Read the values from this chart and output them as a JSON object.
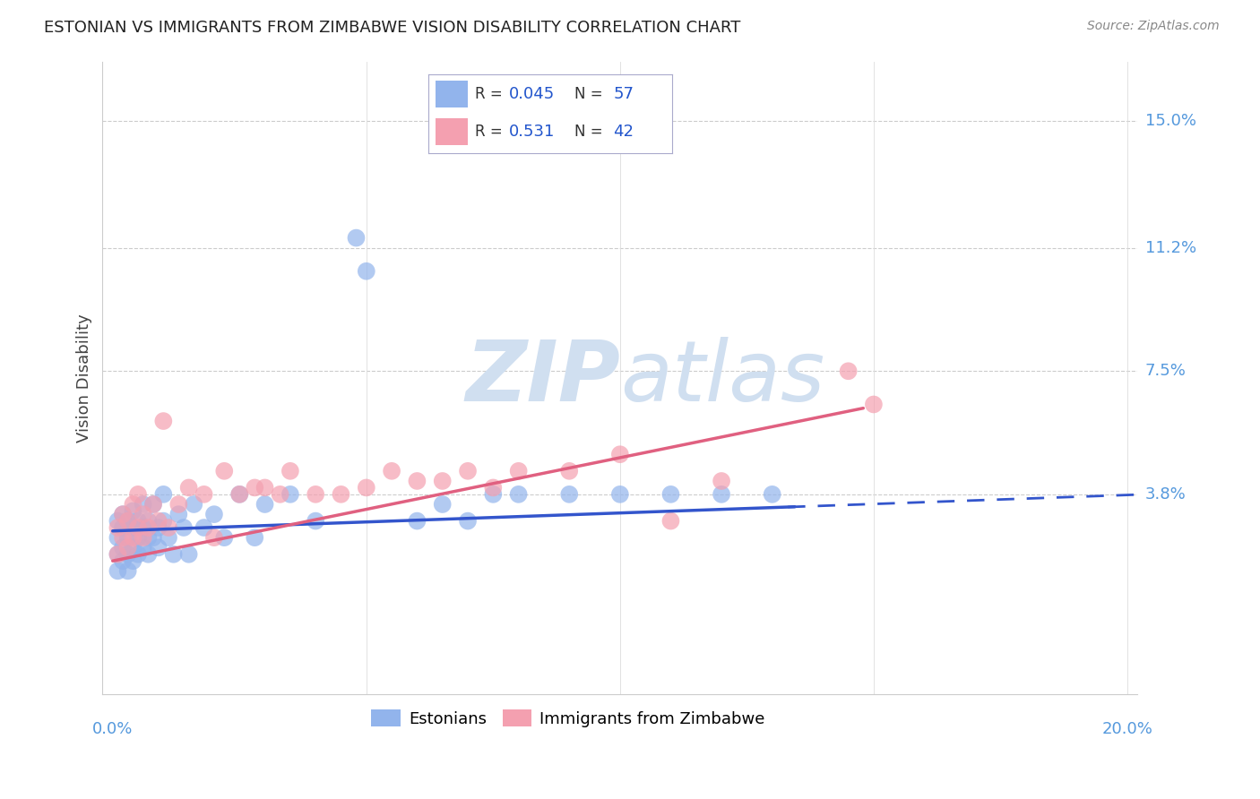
{
  "title": "ESTONIAN VS IMMIGRANTS FROM ZIMBABWE VISION DISABILITY CORRELATION CHART",
  "source": "Source: ZipAtlas.com",
  "ylabel": "Vision Disability",
  "ytick_labels": [
    "15.0%",
    "11.2%",
    "7.5%",
    "3.8%"
  ],
  "ytick_values": [
    0.15,
    0.112,
    0.075,
    0.038
  ],
  "xlim": [
    -0.002,
    0.202
  ],
  "ylim": [
    -0.022,
    0.168
  ],
  "color_estonian": "#92B4EC",
  "color_zimbabwe": "#F4A0B0",
  "color_estonian_line": "#3355CC",
  "color_zimbabwe_line": "#E06080",
  "background_color": "#ffffff",
  "watermark_color": "#D0DFF0",
  "estonian_x": [
    0.001,
    0.001,
    0.001,
    0.001,
    0.002,
    0.002,
    0.002,
    0.002,
    0.003,
    0.003,
    0.003,
    0.003,
    0.004,
    0.004,
    0.004,
    0.004,
    0.005,
    0.005,
    0.005,
    0.006,
    0.006,
    0.006,
    0.007,
    0.007,
    0.007,
    0.008,
    0.008,
    0.009,
    0.009,
    0.01,
    0.01,
    0.011,
    0.012,
    0.013,
    0.014,
    0.015,
    0.016,
    0.018,
    0.02,
    0.022,
    0.025,
    0.028,
    0.03,
    0.035,
    0.04,
    0.048,
    0.05,
    0.06,
    0.065,
    0.07,
    0.075,
    0.08,
    0.09,
    0.1,
    0.11,
    0.12,
    0.13
  ],
  "estonian_y": [
    0.02,
    0.025,
    0.03,
    0.015,
    0.018,
    0.022,
    0.028,
    0.032,
    0.02,
    0.025,
    0.03,
    0.015,
    0.022,
    0.028,
    0.033,
    0.018,
    0.02,
    0.025,
    0.03,
    0.022,
    0.028,
    0.035,
    0.025,
    0.03,
    0.02,
    0.025,
    0.035,
    0.022,
    0.028,
    0.03,
    0.038,
    0.025,
    0.02,
    0.032,
    0.028,
    0.02,
    0.035,
    0.028,
    0.032,
    0.025,
    0.038,
    0.025,
    0.035,
    0.038,
    0.03,
    0.115,
    0.105,
    0.03,
    0.035,
    0.03,
    0.038,
    0.038,
    0.038,
    0.038,
    0.038,
    0.038,
    0.038
  ],
  "zimbabwe_x": [
    0.001,
    0.001,
    0.002,
    0.002,
    0.003,
    0.003,
    0.004,
    0.004,
    0.005,
    0.005,
    0.006,
    0.006,
    0.007,
    0.008,
    0.009,
    0.01,
    0.011,
    0.013,
    0.015,
    0.018,
    0.02,
    0.022,
    0.025,
    0.028,
    0.03,
    0.033,
    0.035,
    0.04,
    0.045,
    0.05,
    0.055,
    0.06,
    0.065,
    0.07,
    0.075,
    0.08,
    0.09,
    0.1,
    0.11,
    0.12,
    0.145,
    0.15
  ],
  "zimbabwe_y": [
    0.02,
    0.028,
    0.025,
    0.032,
    0.022,
    0.03,
    0.025,
    0.035,
    0.028,
    0.038,
    0.025,
    0.032,
    0.028,
    0.035,
    0.03,
    0.06,
    0.028,
    0.035,
    0.04,
    0.038,
    0.025,
    0.045,
    0.038,
    0.04,
    0.04,
    0.038,
    0.045,
    0.038,
    0.038,
    0.04,
    0.045,
    0.042,
    0.042,
    0.045,
    0.04,
    0.045,
    0.045,
    0.05,
    0.03,
    0.042,
    0.075,
    0.065
  ]
}
